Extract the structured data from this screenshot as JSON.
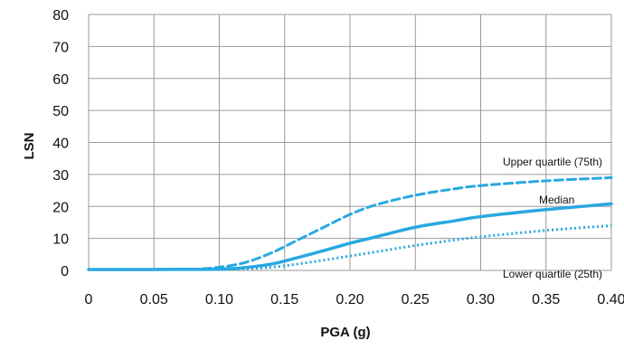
{
  "chart_data": {
    "type": "line",
    "title": "",
    "xlabel": "PGA (g)",
    "ylabel": "LSN",
    "xlim": [
      0,
      0.4
    ],
    "ylim": [
      0,
      80
    ],
    "x_ticks": [
      "0",
      "0.05",
      "0.10",
      "0.15",
      "0.20",
      "0.25",
      "0.30",
      "0.35",
      "0.40"
    ],
    "y_ticks": [
      "0",
      "10",
      "20",
      "30",
      "40",
      "50",
      "60",
      "70",
      "80"
    ],
    "grid": true,
    "line_color": "#29a8e0",
    "series": [
      {
        "name": "Upper quartile (75th)",
        "style": "dashed",
        "x": [
          0,
          0.05,
          0.08,
          0.1,
          0.12,
          0.14,
          0.16,
          0.18,
          0.2,
          0.22,
          0.25,
          0.28,
          0.3,
          0.35,
          0.4
        ],
        "y": [
          0.3,
          0.3,
          0.4,
          1.0,
          2.5,
          5.5,
          9.5,
          13.5,
          17.5,
          20.5,
          23.5,
          25.5,
          26.5,
          28.0,
          29.0
        ]
      },
      {
        "name": "Median",
        "style": "solid",
        "x": [
          0,
          0.05,
          0.1,
          0.12,
          0.14,
          0.16,
          0.18,
          0.2,
          0.22,
          0.25,
          0.28,
          0.3,
          0.35,
          0.4
        ],
        "y": [
          0.3,
          0.3,
          0.4,
          0.9,
          2.0,
          4.0,
          6.2,
          8.5,
          10.5,
          13.5,
          15.5,
          16.8,
          19.0,
          20.8
        ]
      },
      {
        "name": "Lower quartile (25th)",
        "style": "dotted",
        "x": [
          0,
          0.05,
          0.1,
          0.12,
          0.14,
          0.16,
          0.18,
          0.2,
          0.22,
          0.25,
          0.28,
          0.3,
          0.35,
          0.4
        ],
        "y": [
          0.3,
          0.3,
          0.3,
          0.5,
          1.0,
          2.0,
          3.2,
          4.5,
          5.8,
          7.8,
          9.5,
          10.5,
          12.5,
          14.0
        ]
      }
    ],
    "annotations": [
      "Upper quartile (75th)",
      "Median",
      "Lower quartile (25th)"
    ]
  }
}
